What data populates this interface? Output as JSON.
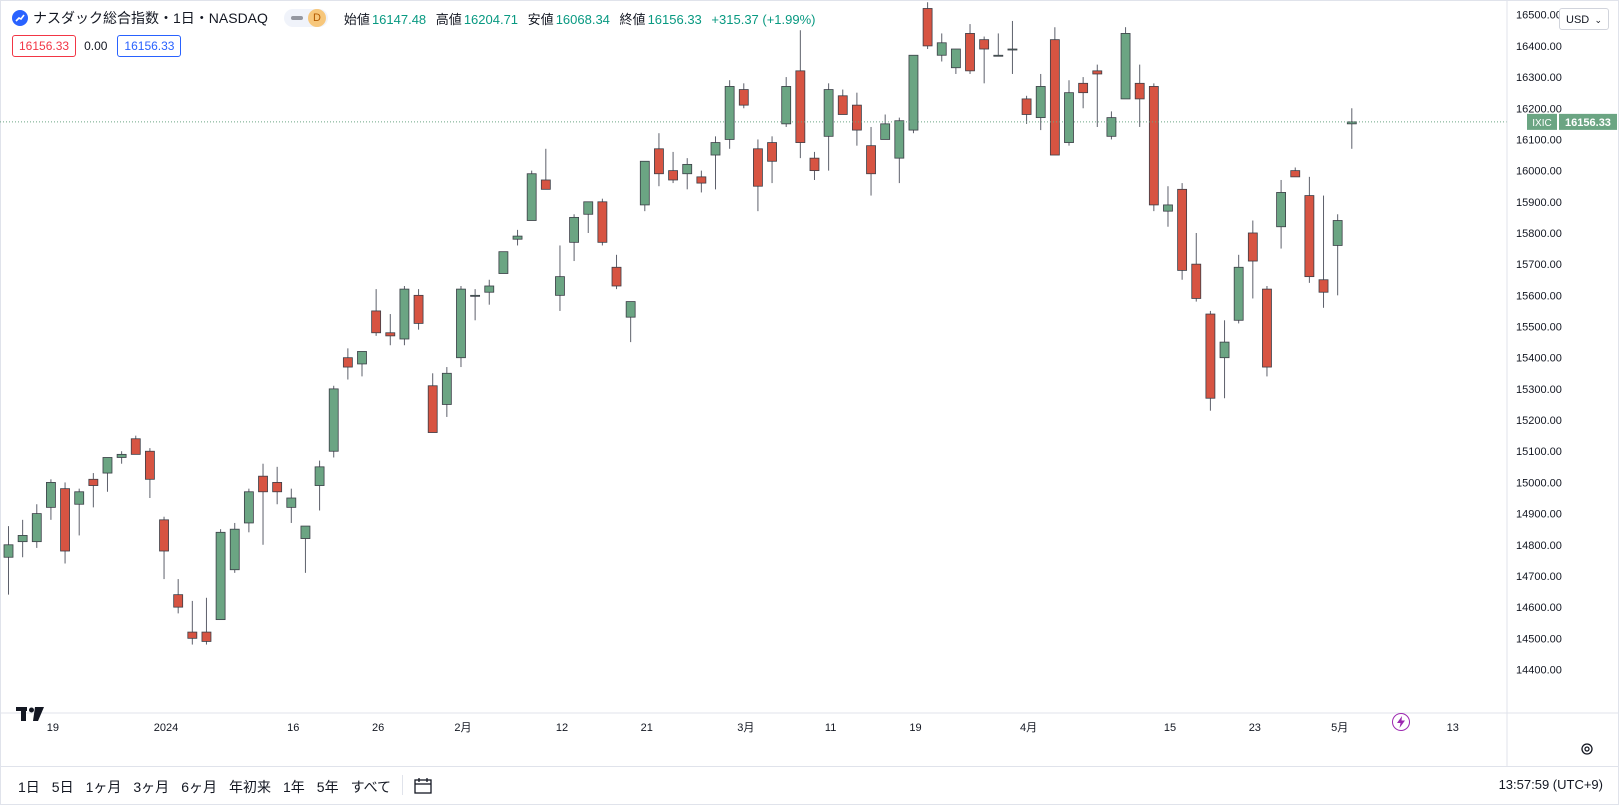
{
  "header": {
    "title": "ナスダック総合指数・1日・NASDAQ",
    "interval_badge": "D",
    "ohlc": [
      {
        "label": "始値",
        "value": "16147.48"
      },
      {
        "label": "高値",
        "value": "16204.71"
      },
      {
        "label": "安値",
        "value": "16068.34"
      },
      {
        "label": "終値",
        "value": "16156.33"
      }
    ],
    "change": "+315.37 (+1.99%)"
  },
  "values_row": {
    "bid": "16156.33",
    "spread": "0.00",
    "ask": "16156.33"
  },
  "currency": "USD",
  "bottom_bar": {
    "ranges": [
      "1日",
      "5日",
      "1ヶ月",
      "3ヶ月",
      "6ヶ月",
      "年初来",
      "1年",
      "5年",
      "すべて"
    ],
    "clock": "13:57:59 (UTC+9)"
  },
  "colors": {
    "up": "#6ba583",
    "down": "#d75442",
    "last_price": "#6ba583"
  },
  "chart_data": {
    "type": "candlestick",
    "symbol": "IXIC",
    "last_price": "16156.33",
    "ylim": [
      14330,
      16640
    ],
    "y_ticks": [
      "14400.00",
      "14500.00",
      "14600.00",
      "14700.00",
      "14800.00",
      "14900.00",
      "15000.00",
      "15100.00",
      "15200.00",
      "15300.00",
      "15400.00",
      "15500.00",
      "15600.00",
      "15700.00",
      "15800.00",
      "15900.00",
      "16000.00",
      "16100.00",
      "16200.00",
      "16300.00",
      "16400.00",
      "16500.00"
    ],
    "x_ticks": [
      {
        "label": "19",
        "i": 3
      },
      {
        "label": "2024",
        "i": 11
      },
      {
        "label": "16",
        "i": 20
      },
      {
        "label": "26",
        "i": 26
      },
      {
        "label": "2月",
        "i": 32
      },
      {
        "label": "12",
        "i": 39
      },
      {
        "label": "21",
        "i": 45
      },
      {
        "label": "3月",
        "i": 52
      },
      {
        "label": "11",
        "i": 58
      },
      {
        "label": "19",
        "i": 64
      },
      {
        "label": "4月",
        "i": 72
      },
      {
        "label": "15",
        "i": 82
      },
      {
        "label": "23",
        "i": 88
      },
      {
        "label": "5月",
        "i": 94
      },
      {
        "label": "13",
        "i": 102
      }
    ],
    "candles": [
      [
        14760,
        14860,
        14640,
        14800
      ],
      [
        14810,
        14880,
        14760,
        14830
      ],
      [
        14810,
        14930,
        14790,
        14900
      ],
      [
        14920,
        15010,
        14880,
        15000
      ],
      [
        14980,
        15000,
        14740,
        14780
      ],
      [
        14930,
        14980,
        14830,
        14970
      ],
      [
        15010,
        15030,
        14920,
        14990
      ],
      [
        15030,
        15080,
        14970,
        15080
      ],
      [
        15080,
        15100,
        15060,
        15090
      ],
      [
        15140,
        15150,
        15090,
        15090
      ],
      [
        15100,
        15110,
        14950,
        15010
      ],
      [
        14880,
        14890,
        14690,
        14780
      ],
      [
        14640,
        14690,
        14580,
        14600
      ],
      [
        14520,
        14620,
        14480,
        14500
      ],
      [
        14520,
        14630,
        14480,
        14490
      ],
      [
        14560,
        14850,
        14560,
        14840
      ],
      [
        14720,
        14870,
        14710,
        14850
      ],
      [
        14870,
        14980,
        14840,
        14970
      ],
      [
        15020,
        15060,
        14800,
        14970
      ],
      [
        15000,
        15050,
        14930,
        14970
      ],
      [
        14920,
        14980,
        14870,
        14950
      ],
      [
        14820,
        14860,
        14710,
        14860
      ],
      [
        14990,
        15070,
        14910,
        15050
      ],
      [
        15100,
        15310,
        15080,
        15300
      ],
      [
        15400,
        15430,
        15330,
        15370
      ],
      [
        15380,
        15420,
        15340,
        15420
      ],
      [
        15550,
        15620,
        15470,
        15480
      ],
      [
        15480,
        15540,
        15440,
        15470
      ],
      [
        15460,
        15630,
        15440,
        15620
      ],
      [
        15600,
        15620,
        15490,
        15510
      ],
      [
        15310,
        15350,
        15160,
        15160
      ],
      [
        15250,
        15370,
        15210,
        15350
      ],
      [
        15400,
        15630,
        15370,
        15620
      ],
      [
        15600,
        15620,
        15520,
        15600
      ],
      [
        15610,
        15650,
        15570,
        15630
      ],
      [
        15670,
        15740,
        15670,
        15740
      ],
      [
        15780,
        15810,
        15760,
        15790
      ],
      [
        15840,
        16000,
        15840,
        15990
      ],
      [
        15970,
        16070,
        15940,
        15940
      ],
      [
        15600,
        15760,
        15550,
        15660
      ],
      [
        15770,
        15860,
        15710,
        15850
      ],
      [
        15860,
        15900,
        15800,
        15900
      ],
      [
        15900,
        15910,
        15760,
        15770
      ],
      [
        15690,
        15730,
        15620,
        15630
      ],
      [
        15530,
        15570,
        15450,
        15580
      ],
      [
        15890,
        16020,
        15870,
        16030
      ],
      [
        16070,
        16120,
        15950,
        15990
      ],
      [
        16000,
        16060,
        15960,
        15970
      ],
      [
        15990,
        16040,
        15940,
        16020
      ],
      [
        15980,
        16000,
        15930,
        15960
      ],
      [
        16050,
        16110,
        15940,
        16090
      ],
      [
        16100,
        16290,
        16070,
        16270
      ],
      [
        16260,
        16280,
        16200,
        16210
      ],
      [
        16070,
        16100,
        15870,
        15950
      ],
      [
        16090,
        16110,
        15960,
        16030
      ],
      [
        16150,
        16300,
        16140,
        16270
      ],
      [
        16320,
        16450,
        16040,
        16090
      ],
      [
        16040,
        16060,
        15970,
        16000
      ],
      [
        16110,
        16280,
        16000,
        16260
      ],
      [
        16240,
        16260,
        16180,
        16180
      ],
      [
        16210,
        16250,
        16080,
        16130
      ],
      [
        16080,
        16140,
        15920,
        15990
      ],
      [
        16100,
        16180,
        16100,
        16150
      ],
      [
        16040,
        16170,
        15960,
        16160
      ],
      [
        16130,
        16360,
        16120,
        16370
      ],
      [
        16520,
        16540,
        16390,
        16400
      ],
      [
        16370,
        16440,
        16350,
        16410
      ],
      [
        16330,
        16380,
        16310,
        16390
      ],
      [
        16440,
        16470,
        16310,
        16320
      ],
      [
        16420,
        16430,
        16280,
        16390
      ],
      [
        16370,
        16440,
        16370,
        16370
      ],
      [
        16390,
        16480,
        16310,
        16390
      ],
      [
        16230,
        16240,
        16150,
        16180
      ],
      [
        16170,
        16310,
        16130,
        16270
      ],
      [
        16420,
        16460,
        16050,
        16050
      ],
      [
        16090,
        16290,
        16080,
        16250
      ],
      [
        16280,
        16300,
        16200,
        16250
      ],
      [
        16320,
        16340,
        16140,
        16310
      ],
      [
        16110,
        16190,
        16100,
        16170
      ],
      [
        16230,
        16460,
        16230,
        16440
      ],
      [
        16280,
        16340,
        16140,
        16230
      ],
      [
        16270,
        16280,
        15870,
        15890
      ],
      [
        15870,
        15950,
        15820,
        15890
      ],
      [
        15940,
        15960,
        15650,
        15680
      ],
      [
        15700,
        15800,
        15580,
        15590
      ],
      [
        15540,
        15550,
        15230,
        15270
      ],
      [
        15400,
        15520,
        15270,
        15450
      ],
      [
        15520,
        15730,
        15510,
        15690
      ],
      [
        15800,
        15840,
        15590,
        15710
      ],
      [
        15620,
        15630,
        15340,
        15370
      ],
      [
        15820,
        15970,
        15750,
        15930
      ],
      [
        16000,
        16010,
        15980,
        15980
      ],
      [
        15920,
        15980,
        15640,
        15660
      ],
      [
        15650,
        15920,
        15560,
        15610
      ],
      [
        15760,
        15860,
        15600,
        15840
      ],
      [
        16150,
        16200,
        16070,
        16156.33
      ]
    ]
  }
}
